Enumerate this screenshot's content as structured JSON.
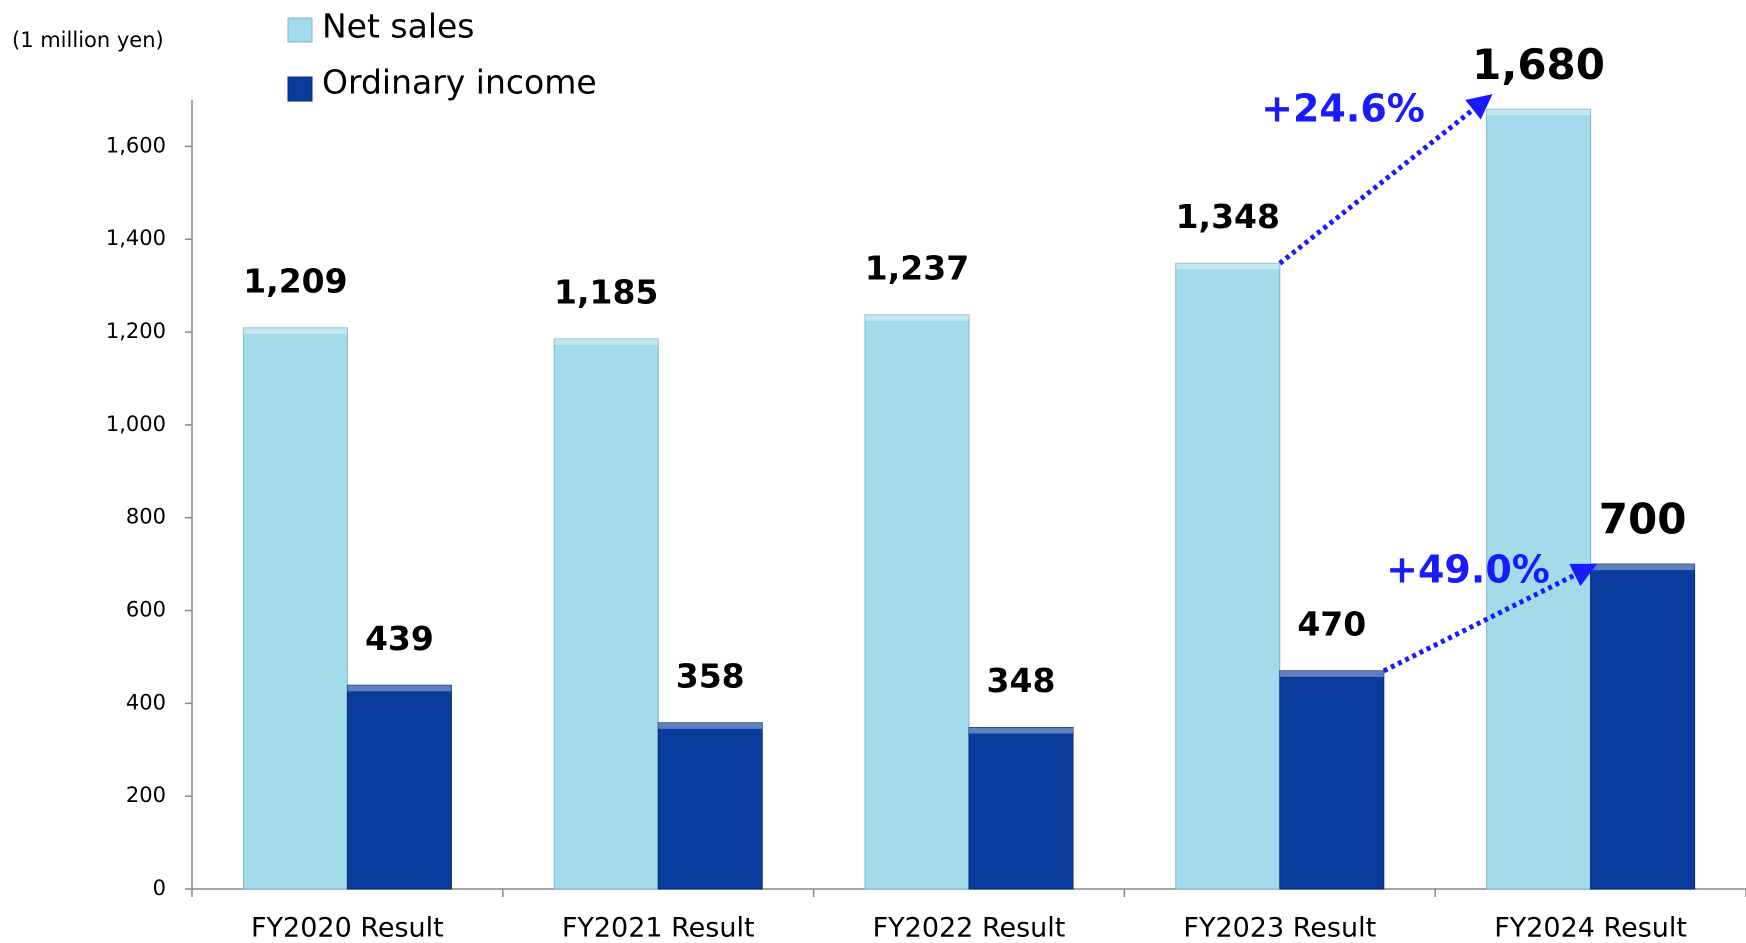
{
  "chart_data": {
    "type": "bar",
    "unit_label": "(1 million yen)",
    "categories": [
      "FY2020 Result",
      "FY2021 Result",
      "FY2022 Result",
      "FY2023 Result",
      "FY2024 Result"
    ],
    "series": [
      {
        "name": "Net sales",
        "color": "#a3dbeb",
        "values": [
          1209,
          1185,
          1237,
          1348,
          1680
        ],
        "value_labels": [
          "1,209",
          "1,185",
          "1,237",
          "1,348",
          "1,680"
        ]
      },
      {
        "name": "Ordinary income",
        "color": "#0a3c9e",
        "values": [
          439,
          358,
          348,
          470,
          700
        ]
      }
    ],
    "annotations": [
      "+24.6%",
      "+49.0%"
    ],
    "ylim": [
      0,
      1700
    ],
    "yticks": [
      0,
      200,
      400,
      600,
      800,
      {
        "value": 1000,
        "label": "1,000"
      },
      {
        "value": 1200,
        "label": "1,200"
      },
      {
        "value": 1400,
        "label": "1,400"
      },
      {
        "value": 1600,
        "label": "1,600"
      }
    ]
  }
}
